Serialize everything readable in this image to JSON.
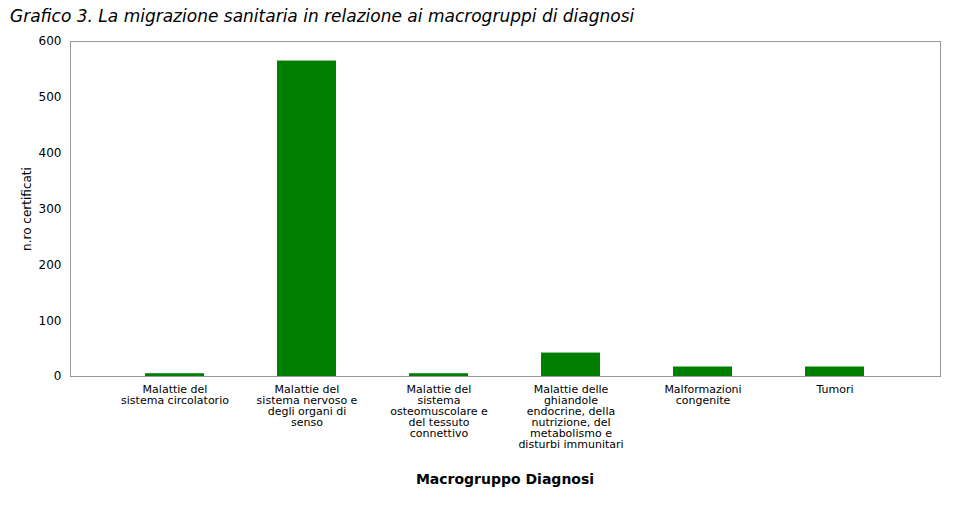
{
  "chart_data": {
    "type": "bar",
    "title": "Grafico 3. La migrazione sanitaria in relazione ai macrogruppi di diagnosi",
    "xlabel": "Macrogruppo Diagnosi",
    "ylabel": "n.ro certificati",
    "categories": [
      "Malattie del\nsistema circolatorio",
      "Malattie del\nsistema nervoso e\ndegli organi di\nsenso",
      "Malattie del\nsistema\nosteomuscolare e\ndel tessuto\nconnettivo",
      "Malattie delle\nghiandole\nendocrine, della\nnutrizione, del\nmetabolismo e\ndisturbi immunitari",
      "Malformazioni\ncongenite",
      "Tumori"
    ],
    "values": [
      5,
      565,
      5,
      42,
      17,
      17
    ],
    "color": "#008000",
    "ylim": [
      0,
      600
    ],
    "yticks": [
      0,
      100,
      200,
      300,
      400,
      500,
      600
    ],
    "grid": false
  }
}
